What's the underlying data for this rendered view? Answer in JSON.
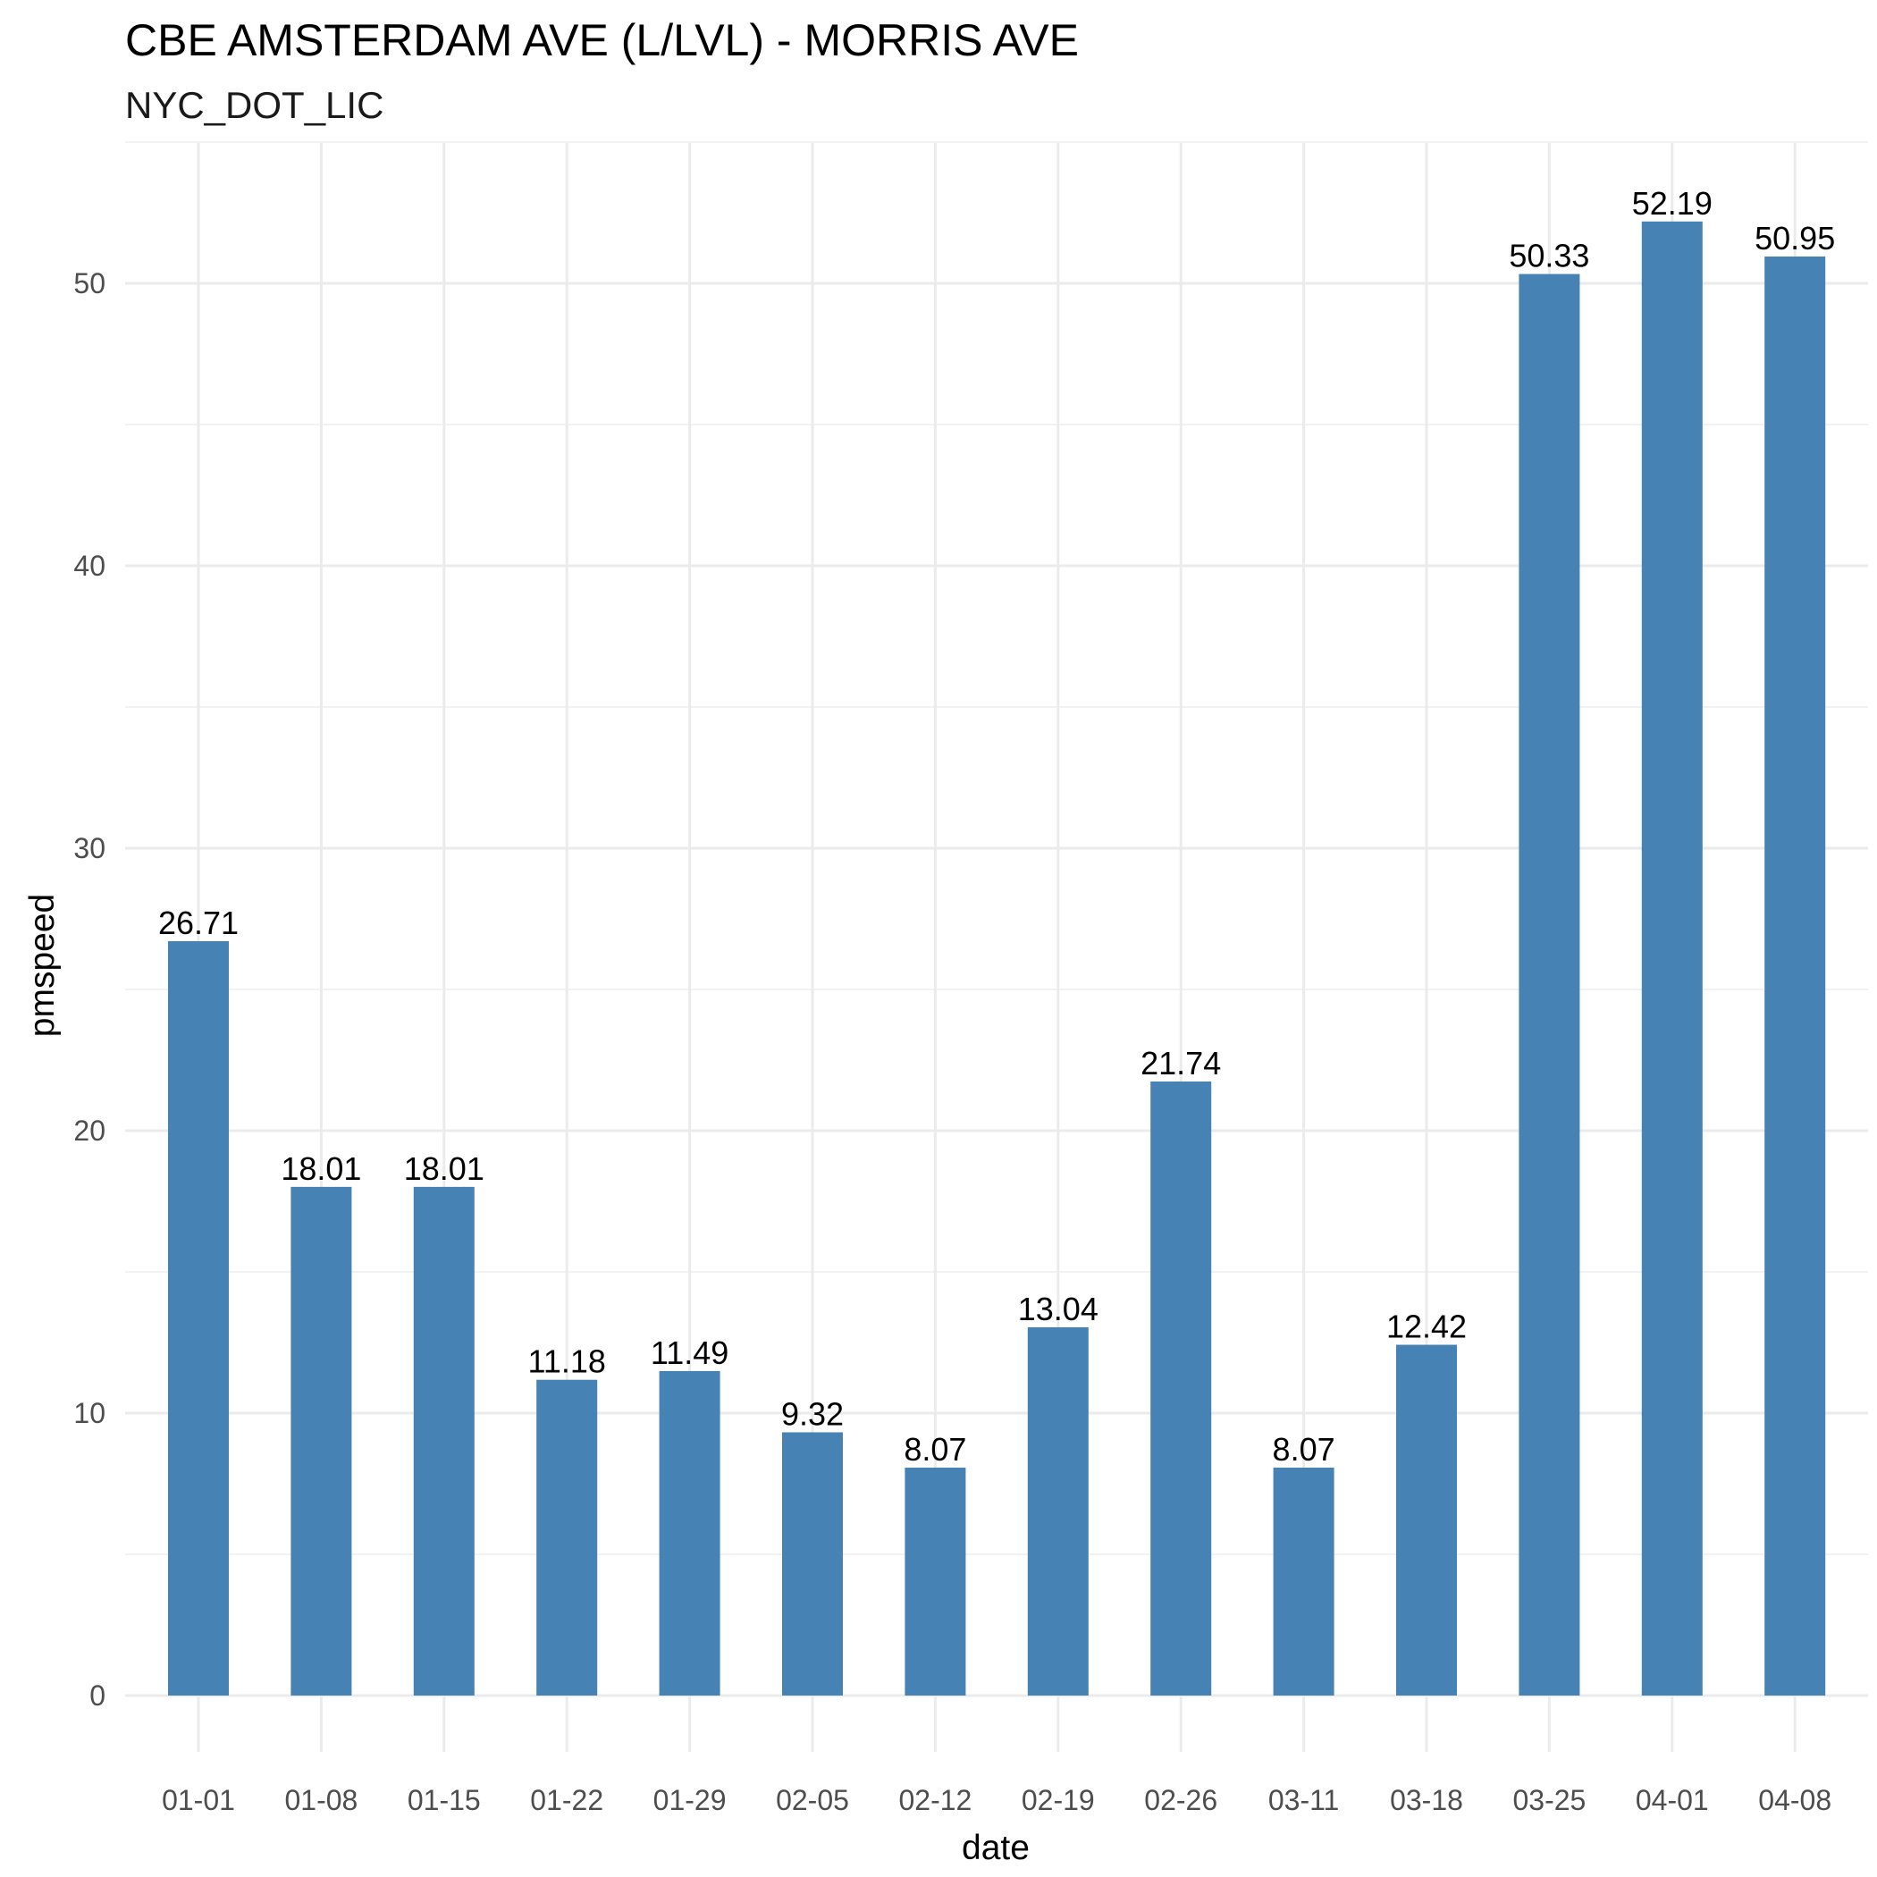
{
  "chart_data": {
    "type": "bar",
    "title": "CBE AMSTERDAM AVE (L/LVL) - MORRIS AVE",
    "subtitle": "NYC_DOT_LIC",
    "xlabel": "date",
    "ylabel": "pmspeed",
    "categories": [
      "01-01",
      "01-08",
      "01-15",
      "01-22",
      "01-29",
      "02-05",
      "02-12",
      "02-19",
      "02-26",
      "03-11",
      "03-18",
      "03-25",
      "04-01",
      "04-08"
    ],
    "values": [
      26.71,
      18.01,
      18.01,
      11.18,
      11.49,
      9.32,
      8.07,
      13.04,
      21.74,
      8.07,
      12.42,
      50.33,
      52.19,
      50.95
    ],
    "value_labels": [
      "26.71",
      "18.01",
      "18.01",
      "11.18",
      "11.49",
      "9.32",
      "8.07",
      "13.04",
      "21.74",
      "8.07",
      "12.42",
      "50.33",
      "52.19",
      "50.95"
    ],
    "ylim": [
      0,
      55
    ],
    "yticks": [
      0,
      10,
      20,
      30,
      40,
      50
    ],
    "ytick_labels": [
      "0",
      "10",
      "20",
      "30",
      "40",
      "50"
    ],
    "grid": true,
    "legend": "none",
    "bar_color": "#4682b4"
  }
}
